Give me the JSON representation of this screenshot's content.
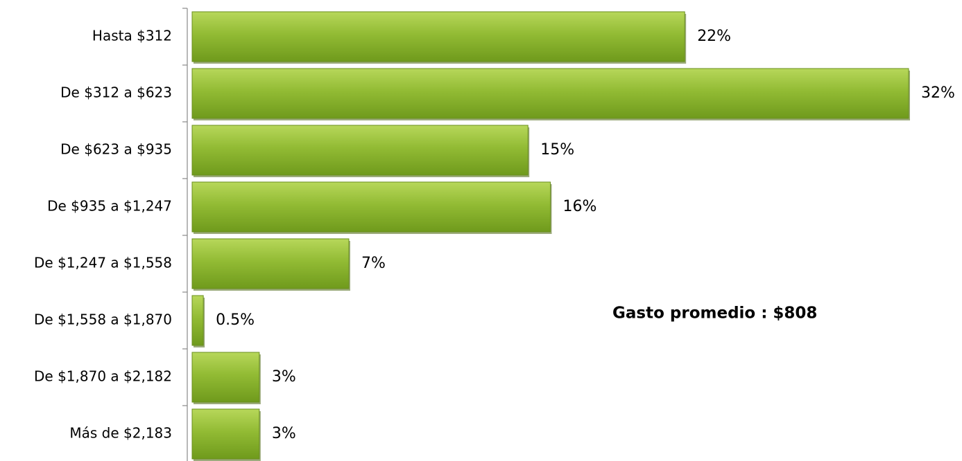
{
  "chart_data": {
    "type": "bar",
    "orientation": "horizontal",
    "categories": [
      "Hasta $312",
      "De $312 a $623",
      "De $623 a $935",
      "De $935 a $1,247",
      "De $1,247 a $1,558",
      "De $1,558 a $1,870",
      "De $1,870 a $2,182",
      "Más de $2,183"
    ],
    "values": [
      22,
      32,
      15,
      16,
      7,
      0.5,
      3,
      3
    ],
    "value_labels": [
      "22%",
      "32%",
      "15%",
      "16%",
      "7%",
      "0.5%",
      "3%",
      "3%"
    ],
    "color": "#8db530",
    "annotation": "Gasto promedio : $808"
  }
}
